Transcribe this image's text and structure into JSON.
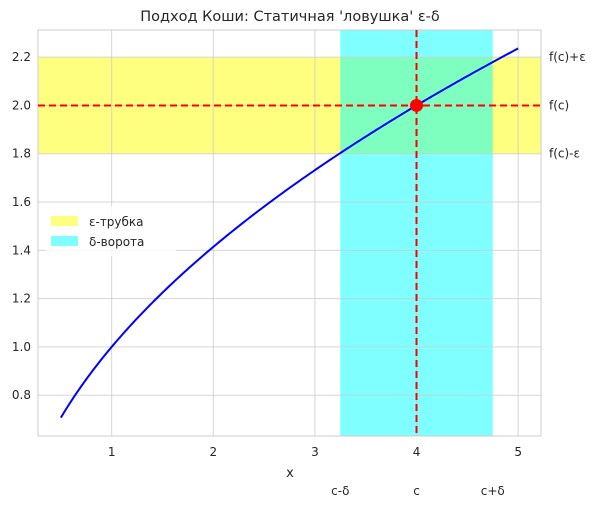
{
  "chart_data": {
    "type": "line",
    "title": "Подход Коши: Статичная 'ловушка' ε-δ",
    "xlabel": "x",
    "ylabel": "",
    "xlim": [
      0.275,
      5.225
    ],
    "ylim": [
      0.6311,
      2.3124
    ],
    "grid": true,
    "x_ticks": [
      1,
      2,
      3,
      4,
      5
    ],
    "x_tick_labels": [
      "1",
      "2",
      "3",
      "4",
      "5"
    ],
    "y_ticks": [
      0.8,
      1.0,
      1.2,
      1.4,
      1.6,
      1.8,
      2.0,
      2.2
    ],
    "y_tick_labels": [
      "0.8",
      "1.0",
      "1.2",
      "1.4",
      "1.6",
      "1.8",
      "2.0",
      "2.2"
    ],
    "curve": {
      "function": "sqrt(x)",
      "x_range": [
        0.5,
        5
      ],
      "color": "#0000ff"
    },
    "c": 4,
    "fc": 2.0,
    "epsilon": 0.2,
    "delta": 0.75,
    "point_color": "#ff0000",
    "dashed_line_color": "#ff0000",
    "bands": [
      {
        "name": "ε-трубка",
        "axis": "y",
        "range": [
          1.8,
          2.2
        ],
        "color": "#ffff00",
        "alpha": 0.5
      },
      {
        "name": "δ-ворота",
        "axis": "x",
        "range": [
          3.25,
          4.75
        ],
        "color": "#00ffff",
        "alpha": 0.5
      }
    ],
    "legend": {
      "placement": "center-left",
      "entries": [
        "ε-трубка",
        "δ-ворота"
      ]
    },
    "right_labels": [
      {
        "value": 2.2,
        "text": "f(c)+ε"
      },
      {
        "value": 2.0,
        "text": "f(c)"
      },
      {
        "value": 1.8,
        "text": "f(c)-ε"
      }
    ],
    "bottom_labels": [
      {
        "value": 3.25,
        "text": "c-δ"
      },
      {
        "value": 4,
        "text": "c"
      },
      {
        "value": 4.75,
        "text": "c+δ"
      }
    ]
  }
}
